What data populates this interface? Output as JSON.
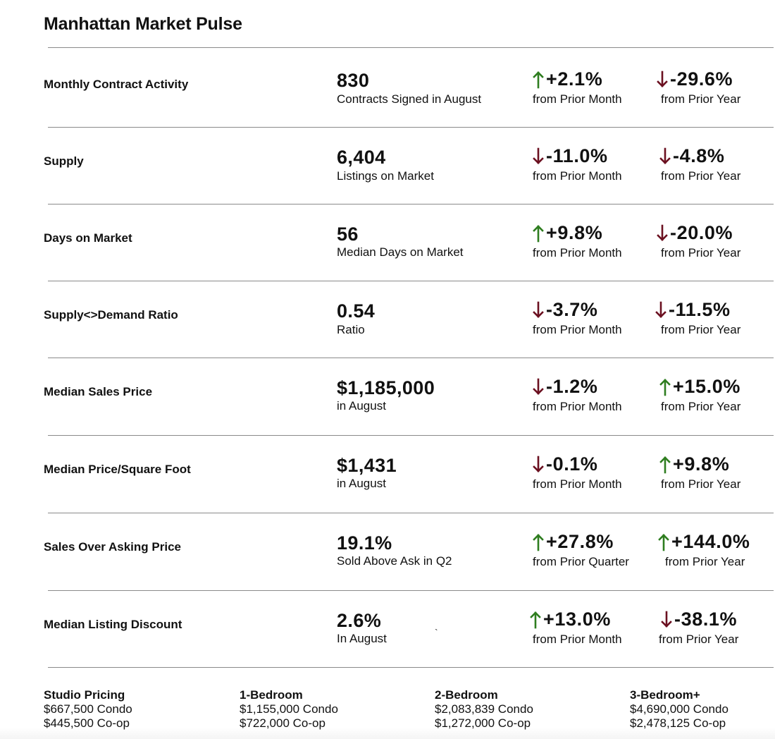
{
  "title": "Manhattan Market Pulse",
  "colors": {
    "up_arrow": "#2e7d1f",
    "down_arrow": "#6b1020",
    "rule": "#8a8a8a",
    "text": "#111111"
  },
  "icons": {
    "up": "arrow-up-icon",
    "down": "arrow-down-icon"
  },
  "metrics": [
    {
      "label": "Monthly Contract Activity",
      "value": "830",
      "sub": "Contracts Signed in August",
      "change1": {
        "direction": "up",
        "pct": "+2.1%",
        "caption": "from Prior Month"
      },
      "change2": {
        "direction": "down",
        "pct": "-29.6%",
        "caption": "from Prior Year"
      }
    },
    {
      "label": "Supply",
      "value": "6,404",
      "sub": "Listings on Market",
      "change1": {
        "direction": "down",
        "pct": "-11.0%",
        "caption": "from Prior Month"
      },
      "change2": {
        "direction": "down",
        "pct": "-4.8%",
        "caption": "from Prior Year"
      }
    },
    {
      "label": "Days on Market",
      "value": "56",
      "sub": "Median Days on Market",
      "change1": {
        "direction": "up",
        "pct": "+9.8%",
        "caption": "from Prior Month"
      },
      "change2": {
        "direction": "down",
        "pct": "-20.0%",
        "caption": "from Prior Year"
      }
    },
    {
      "label": "Supply<>Demand Ratio",
      "value": "0.54",
      "sub": "Ratio",
      "change1": {
        "direction": "down",
        "pct": "-3.7%",
        "caption": "from Prior Month"
      },
      "change2": {
        "direction": "down",
        "pct": "-11.5%",
        "caption": "from Prior Year"
      }
    },
    {
      "label": "Median Sales Price",
      "value": "$1,185,000",
      "sub": "in August",
      "change1": {
        "direction": "down",
        "pct": "-1.2%",
        "caption": "from Prior Month"
      },
      "change2": {
        "direction": "up",
        "pct": "+15.0%",
        "caption": "from Prior Year"
      }
    },
    {
      "label": "Median Price/Square Foot",
      "value": "$1,431",
      "sub": "in August",
      "change1": {
        "direction": "down",
        "pct": "-0.1%",
        "caption": "from Prior Month"
      },
      "change2": {
        "direction": "up",
        "pct": "+9.8%",
        "caption": "from Prior Year"
      }
    },
    {
      "label": "Sales Over Asking Price",
      "value": "19.1%",
      "sub": "Sold Above Ask in Q2",
      "change1": {
        "direction": "up",
        "pct": "+27.8%",
        "caption": "from Prior Quarter"
      },
      "change2": {
        "direction": "up",
        "pct": "+144.0%",
        "caption": "from Prior Year"
      }
    },
    {
      "label": "Median Listing Discount",
      "value": "2.6%",
      "sub": "In August",
      "change1": {
        "direction": "up",
        "pct": "+13.0%",
        "caption": "from Prior Month"
      },
      "change2": {
        "direction": "down",
        "pct": "-38.1%",
        "caption": "from Prior Year"
      }
    }
  ],
  "stray_mark": "`",
  "pricing": [
    {
      "title": "Studio Pricing",
      "condo": "$667,500 Condo",
      "coop": "$445,500 Co-op"
    },
    {
      "title": "1-Bedroom",
      "condo": "$1,155,000 Condo",
      "coop": "$722,000 Co-op"
    },
    {
      "title": "2-Bedroom",
      "condo": "$2,083,839 Condo",
      "coop": "$1,272,000 Co-op"
    },
    {
      "title": "3-Bedroom+",
      "condo": "$4,690,000 Condo",
      "coop": "$2,478,125 Co-op"
    }
  ]
}
